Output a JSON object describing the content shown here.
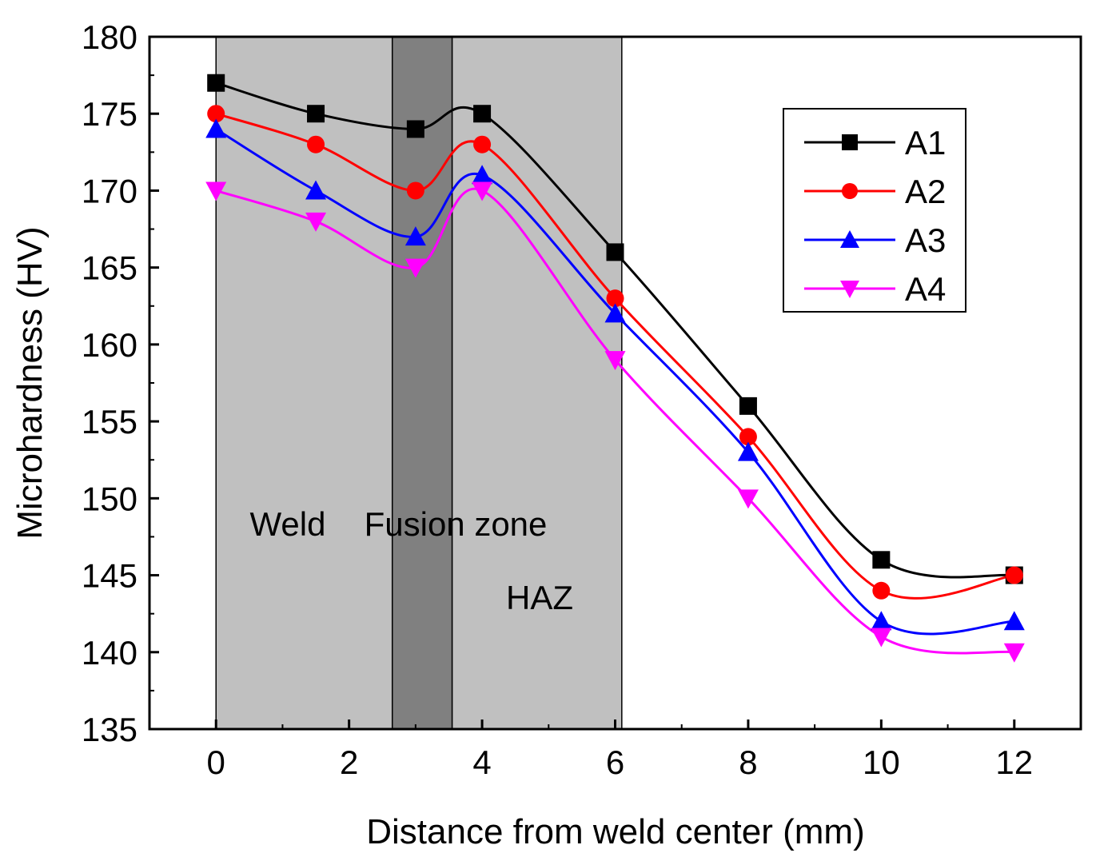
{
  "chart_data": {
    "type": "line",
    "title": "",
    "xlabel": "Distance from weld center (mm)",
    "ylabel": "Microhardness (HV)",
    "xlim": [
      -1,
      13
    ],
    "ylim": [
      135,
      180
    ],
    "xticks": [
      0,
      2,
      4,
      6,
      8,
      10,
      12
    ],
    "yticks": [
      135,
      140,
      145,
      150,
      155,
      160,
      165,
      170,
      175,
      180
    ],
    "grid": false,
    "legend_position": "top-right",
    "x": [
      0,
      1.5,
      3,
      4,
      6,
      8,
      10,
      12
    ],
    "series": [
      {
        "name": "A1",
        "color": "#000000",
        "marker": "square",
        "values": [
          177,
          175,
          174,
          175,
          166,
          156,
          146,
          145
        ]
      },
      {
        "name": "A2",
        "color": "#ff0000",
        "marker": "circle",
        "values": [
          175,
          173,
          170,
          173,
          163,
          154,
          144,
          145
        ]
      },
      {
        "name": "A3",
        "color": "#0000ff",
        "marker": "triangle-up",
        "values": [
          174,
          170,
          167,
          171,
          162,
          153,
          142,
          142
        ]
      },
      {
        "name": "A4",
        "color": "#ff00ff",
        "marker": "triangle-down",
        "values": [
          170,
          168,
          165,
          170,
          159,
          150,
          141,
          140
        ]
      }
    ],
    "regions": [
      {
        "name": "Weld",
        "x_from": 0,
        "x_to": 2.65,
        "color": "#c0c0c0"
      },
      {
        "name": "Fusion zone",
        "x_from": 2.65,
        "x_to": 3.55,
        "color": "#808080"
      },
      {
        "name": "HAZ",
        "x_from": 3.55,
        "x_to": 6.1,
        "color": "#c0c0c0"
      }
    ],
    "annotations": {
      "weld": "Weld",
      "fusion": "Fusion zone",
      "haz": "HAZ"
    }
  }
}
